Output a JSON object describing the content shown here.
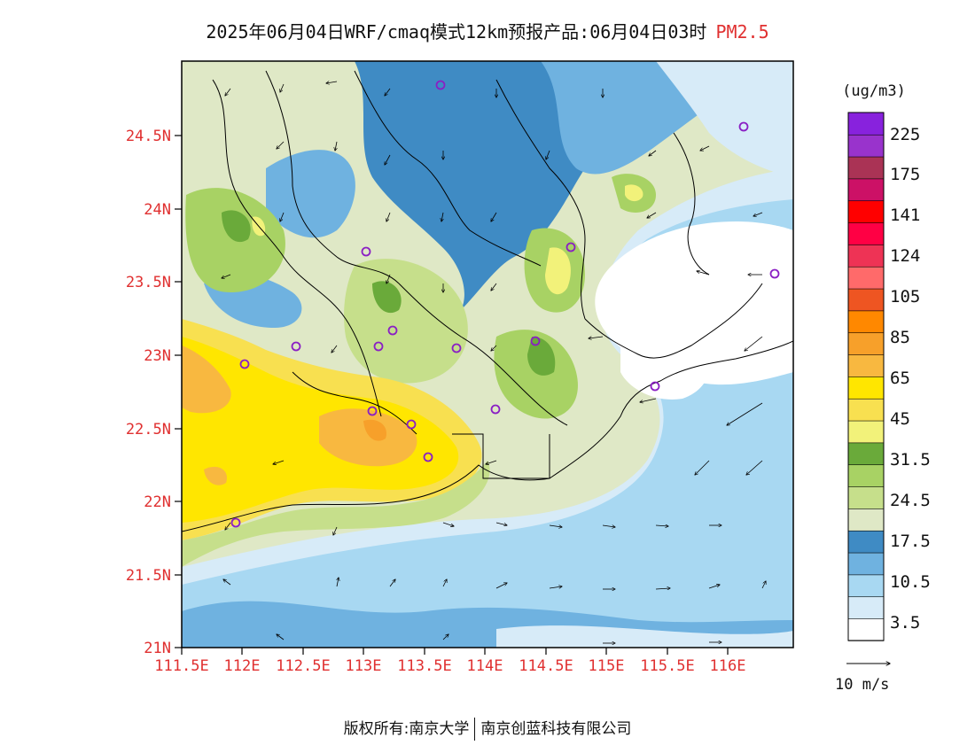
{
  "header": {
    "title": "2025年06月04日WRF/cmaq模式12km预报产品:06月04日03时",
    "pollutant": "PM2.5"
  },
  "map": {
    "lat_ticks": [
      "24.5N",
      "24N",
      "23.5N",
      "23N",
      "22.5N",
      "22N",
      "21.5N",
      "21N"
    ],
    "lon_ticks": [
      "111.5E",
      "112E",
      "112.5E",
      "113E",
      "113.5E",
      "114E",
      "114.5E",
      "115E",
      "115.5E",
      "116E"
    ],
    "tick_color": "#e03030"
  },
  "legend": {
    "unit": "(ug/m3)",
    "colors": [
      "#ffffff",
      "#d7ebf8",
      "#a8d8f2",
      "#6fb2e0",
      "#3f8bc4",
      "#dfe8c6",
      "#c6df8b",
      "#a8d264",
      "#6aaa3a",
      "#f2f27a",
      "#f8e050",
      "#ffe600",
      "#f8b840",
      "#f7a02a",
      "#ff8800",
      "#ee5522",
      "#ff6a6a",
      "#ee3355",
      "#ff0044",
      "#ff0000",
      "#cc1166",
      "#aa3355",
      "#9933cc",
      "#8822dd"
    ],
    "labels": [
      "3.5",
      "10.5",
      "17.5",
      "24.5",
      "31.5",
      "45",
      "65",
      "85",
      "105",
      "124",
      "141",
      "175",
      "225"
    ]
  },
  "wind": {
    "reference_label": "10 m/s"
  },
  "footer": {
    "copyright_label": "版权所有:",
    "org1": "南京大学",
    "org2": "南京创蓝科技有限公司"
  }
}
